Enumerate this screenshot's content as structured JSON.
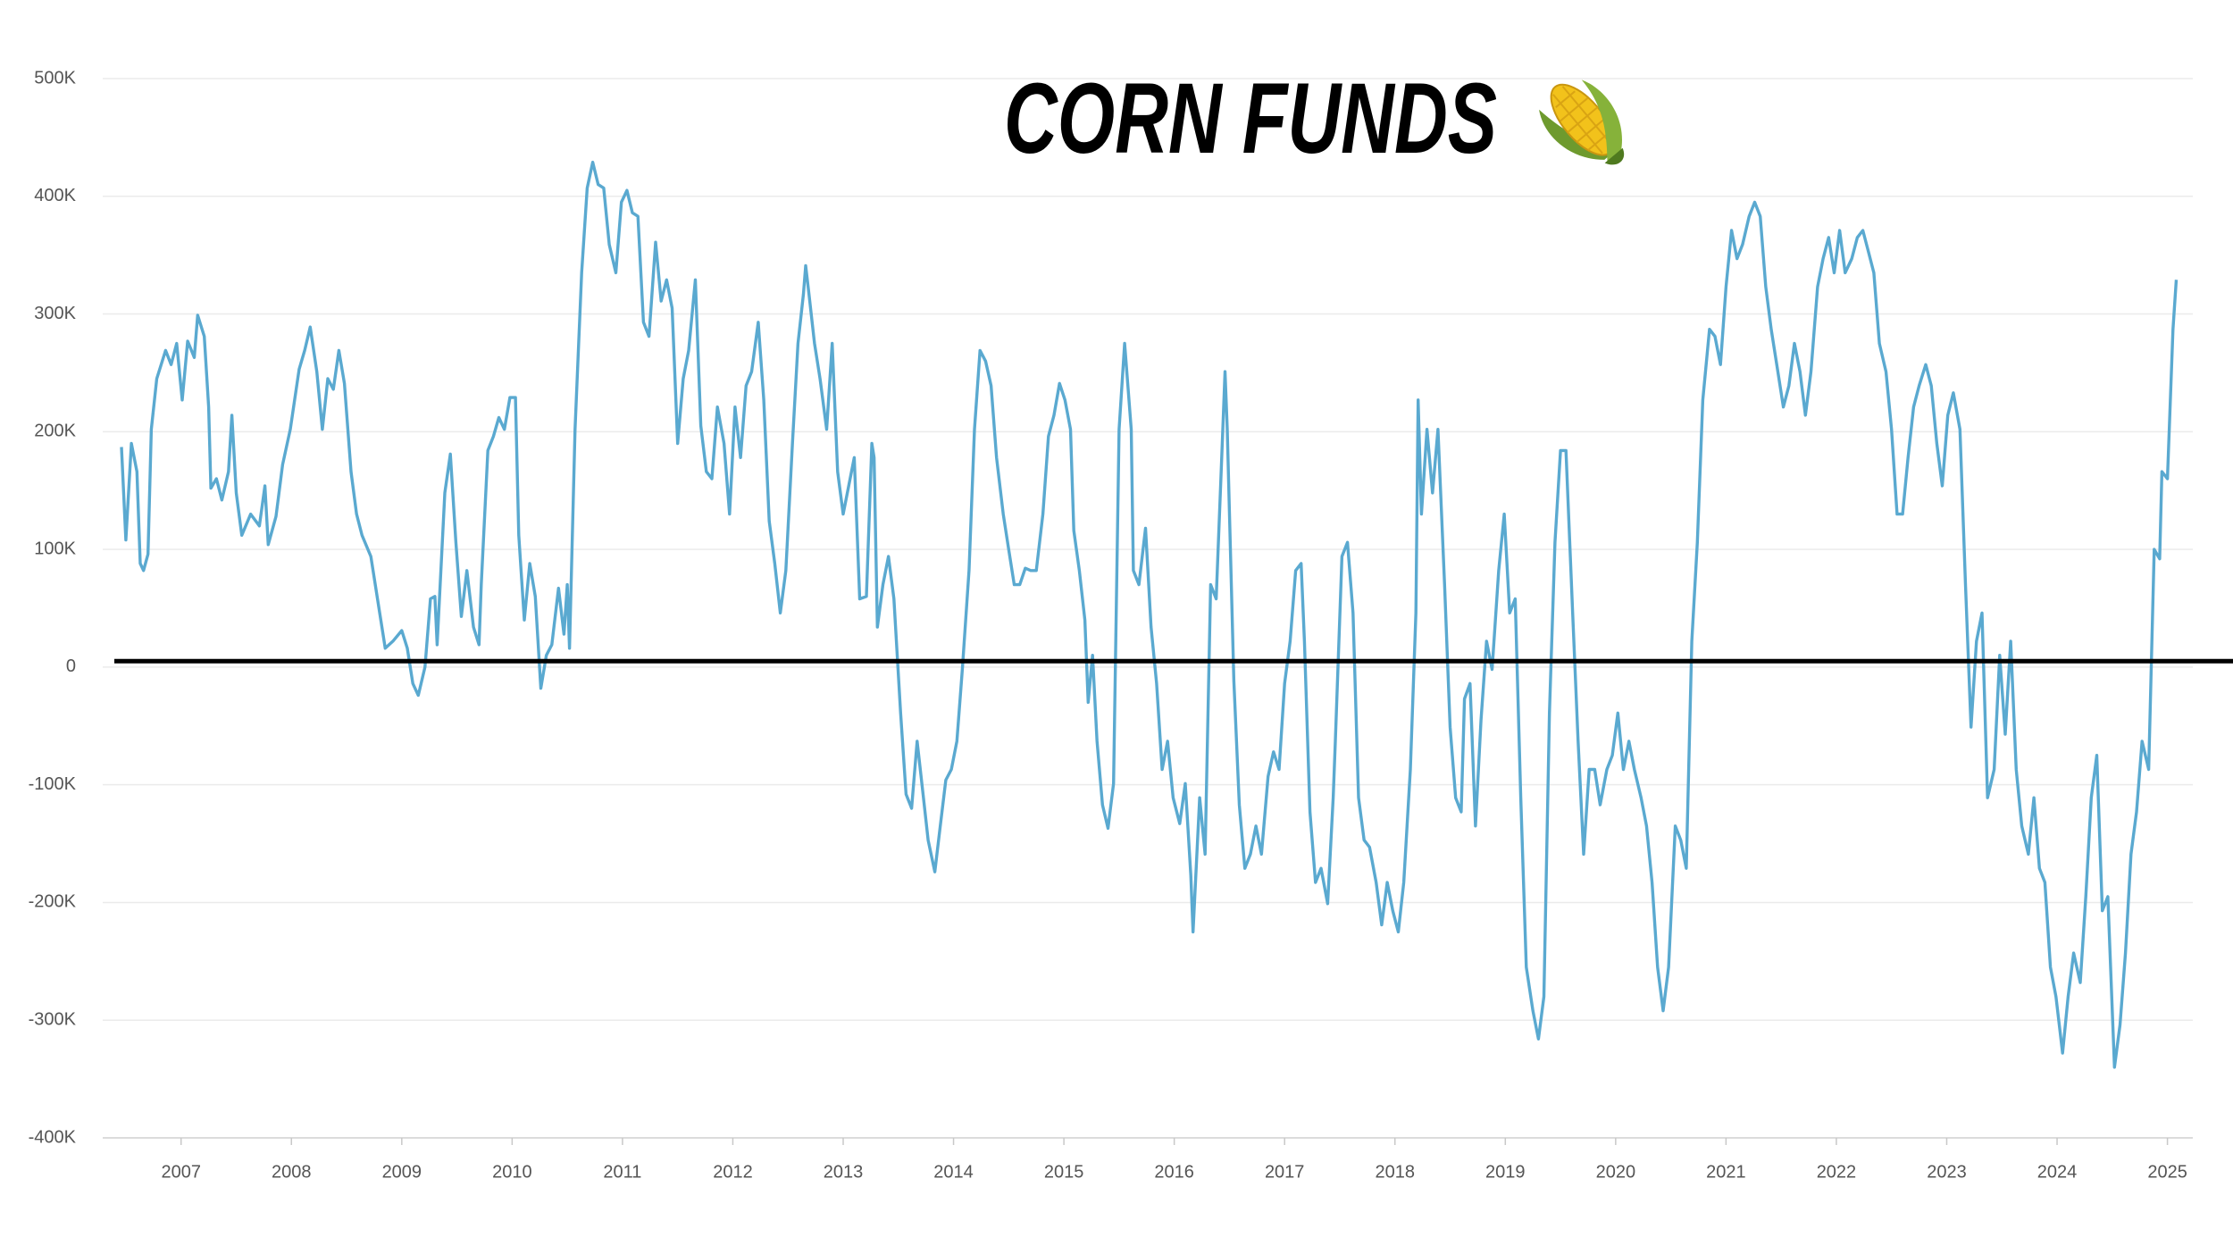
{
  "chart_data": {
    "type": "line",
    "title": "CORN FUNDS",
    "color": "#5aa9d0",
    "xlim": [
      2006.29,
      2025.23
    ],
    "xticks": [
      2007,
      2008,
      2009,
      2010,
      2011,
      2012,
      2013,
      2014,
      2015,
      2016,
      2017,
      2018,
      2019,
      2020,
      2021,
      2022,
      2023,
      2024,
      2025
    ],
    "ylim": [
      -400000,
      500000
    ],
    "yticks": [
      {
        "value": -400000,
        "label": "-400K"
      },
      {
        "value": -300000,
        "label": "-300K"
      },
      {
        "value": -200000,
        "label": "-200K"
      },
      {
        "value": -100000,
        "label": "-100K"
      },
      0,
      {
        "value": 100000,
        "label": "100K"
      },
      {
        "value": 200000,
        "label": "200K"
      },
      {
        "value": 300000,
        "label": "300K"
      },
      {
        "value": 400000,
        "label": "400K"
      },
      {
        "value": 500000,
        "label": "500K"
      }
    ],
    "grid": true,
    "reference_line": {
      "value": 5000,
      "color": "#000000"
    },
    "x": [
      2006.46,
      2006.5,
      2006.55,
      2006.6,
      2006.63,
      2006.66,
      2006.7,
      2006.73,
      2006.78,
      2006.86,
      2006.91,
      2006.96,
      2007.01,
      2007.06,
      2007.12,
      2007.15,
      2007.21,
      2007.25,
      2007.27,
      2007.32,
      2007.37,
      2007.43,
      2007.46,
      2007.5,
      2007.55,
      2007.63,
      2007.71,
      2007.76,
      2007.79,
      2007.86,
      2007.92,
      2007.99,
      2008.07,
      2008.12,
      2008.17,
      2008.23,
      2008.28,
      2008.33,
      2008.38,
      2008.43,
      2008.48,
      2008.54,
      2008.59,
      2008.64,
      2008.72,
      2008.8,
      2008.85,
      2008.92,
      2009.0,
      2009.05,
      2009.1,
      2009.15,
      2009.21,
      2009.26,
      2009.3,
      2009.32,
      2009.39,
      2009.44,
      2009.49,
      2009.54,
      2009.59,
      2009.65,
      2009.7,
      2009.72,
      2009.78,
      2009.83,
      2009.88,
      2009.93,
      2009.98,
      2010.03,
      2010.06,
      2010.11,
      2010.16,
      2010.21,
      2010.26,
      2010.31,
      2010.36,
      2010.42,
      2010.47,
      2010.5,
      2010.52,
      2010.57,
      2010.63,
      2010.68,
      2010.73,
      2010.78,
      2010.83,
      2010.88,
      2010.94,
      2010.99,
      2011.04,
      2011.09,
      2011.14,
      2011.19,
      2011.24,
      2011.3,
      2011.35,
      2011.4,
      2011.45,
      2011.5,
      2011.55,
      2011.6,
      2011.66,
      2011.71,
      2011.76,
      2011.81,
      2011.86,
      2011.92,
      2011.97,
      2012.02,
      2012.07,
      2012.12,
      2012.17,
      2012.23,
      2012.28,
      2012.33,
      2012.38,
      2012.43,
      2012.48,
      2012.54,
      2012.59,
      2012.64,
      2012.66,
      2012.69,
      2012.74,
      2012.79,
      2012.85,
      2012.9,
      2012.95,
      2013.0,
      2013.05,
      2013.1,
      2013.15,
      2013.21,
      2013.26,
      2013.28,
      2013.31,
      2013.36,
      2013.41,
      2013.46,
      2013.52,
      2013.57,
      2013.62,
      2013.67,
      2013.72,
      2013.77,
      2013.83,
      2013.88,
      2013.93,
      2013.98,
      2014.03,
      2014.08,
      2014.14,
      2014.19,
      2014.24,
      2014.29,
      2014.34,
      2014.39,
      2014.45,
      2014.5,
      2014.55,
      2014.6,
      2014.65,
      2014.7,
      2014.75,
      2014.81,
      2014.86,
      2014.91,
      2014.96,
      2015.01,
      2015.06,
      2015.09,
      2015.14,
      2015.19,
      2015.22,
      2015.26,
      2015.3,
      2015.35,
      2015.4,
      2015.45,
      2015.5,
      2015.55,
      2015.61,
      2015.63,
      2015.68,
      2015.74,
      2015.79,
      2015.84,
      2015.89,
      2015.94,
      2015.99,
      2016.05,
      2016.1,
      2016.15,
      2016.17,
      2016.23,
      2016.28,
      2016.33,
      2016.38,
      2016.43,
      2016.46,
      2016.48,
      2016.54,
      2016.59,
      2016.64,
      2016.69,
      2016.74,
      2016.79,
      2016.85,
      2016.9,
      2016.95,
      2017.0,
      2017.05,
      2017.1,
      2017.15,
      2017.18,
      2017.23,
      2017.28,
      2017.33,
      2017.39,
      2017.44,
      2017.46,
      2017.52,
      2017.57,
      2017.62,
      2017.67,
      2017.72,
      2017.77,
      2017.83,
      2017.88,
      2017.93,
      2017.98,
      2018.03,
      2018.08,
      2018.14,
      2018.19,
      2018.21,
      2018.24,
      2018.29,
      2018.34,
      2018.39,
      2018.45,
      2018.5,
      2018.55,
      2018.6,
      2018.63,
      2018.68,
      2018.73,
      2018.78,
      2018.83,
      2018.88,
      2018.94,
      2018.99,
      2019.04,
      2019.09,
      2019.14,
      2019.19,
      2019.25,
      2019.3,
      2019.35,
      2019.4,
      2019.45,
      2019.5,
      2019.55,
      2019.61,
      2019.66,
      2019.71,
      2019.76,
      2019.81,
      2019.86,
      2019.92,
      2019.97,
      2020.02,
      2020.07,
      2020.12,
      2020.17,
      2020.23,
      2020.28,
      2020.33,
      2020.38,
      2020.43,
      2020.48,
      2020.54,
      2020.59,
      2020.64,
      2020.69,
      2020.74,
      2020.79,
      2020.85,
      2020.9,
      2020.95,
      2021.0,
      2021.05,
      2021.1,
      2021.15,
      2021.21,
      2021.26,
      2021.31,
      2021.36,
      2021.41,
      2021.46,
      2021.52,
      2021.57,
      2021.62,
      2021.67,
      2021.72,
      2021.77,
      2021.83,
      2021.88,
      2021.93,
      2021.98,
      2022.03,
      2022.08,
      2022.14,
      2022.19,
      2022.24,
      2022.29,
      2022.34,
      2022.39,
      2022.45,
      2022.5,
      2022.55,
      2022.6,
      2022.65,
      2022.7,
      2022.75,
      2022.81,
      2022.86,
      2022.91,
      2022.96,
      2023.01,
      2023.06,
      2023.12,
      2023.17,
      2023.22,
      2023.27,
      2023.32,
      2023.37,
      2023.43,
      2023.48,
      2023.53,
      2023.58,
      2023.63,
      2023.68,
      2023.74,
      2023.79,
      2023.84,
      2023.89,
      2023.94,
      2023.99,
      2024.05,
      2024.1,
      2024.15,
      2024.21,
      2024.26,
      2024.31,
      2024.36,
      2024.41,
      2024.46,
      2024.52,
      2024.57,
      2024.62,
      2024.67,
      2024.72,
      2024.77,
      2024.83,
      2024.88,
      2024.93,
      2024.95,
      2025.0,
      2025.05,
      2025.08
    ],
    "values": [
      187000,
      108000,
      190000,
      166000,
      88000,
      82000,
      96000,
      202000,
      245000,
      269000,
      257000,
      275000,
      227000,
      277000,
      263000,
      299000,
      281000,
      221000,
      152000,
      160000,
      142000,
      166000,
      214000,
      148000,
      112000,
      130000,
      120000,
      154000,
      104000,
      128000,
      172000,
      202000,
      253000,
      269000,
      289000,
      251000,
      202000,
      245000,
      236000,
      269000,
      241000,
      166000,
      130000,
      112000,
      94000,
      46000,
      16000,
      22000,
      31000,
      16000,
      -14000,
      -24000,
      0,
      58000,
      60000,
      19000,
      148000,
      181000,
      106000,
      43000,
      82000,
      34000,
      19000,
      70000,
      184000,
      196000,
      212000,
      202000,
      229000,
      229000,
      112000,
      40000,
      88000,
      60000,
      -18000,
      10000,
      19000,
      67000,
      28000,
      70000,
      16000,
      202000,
      335000,
      407000,
      429000,
      410000,
      407000,
      359000,
      335000,
      395000,
      405000,
      386000,
      383000,
      293000,
      281000,
      361000,
      311000,
      329000,
      305000,
      190000,
      245000,
      269000,
      329000,
      205000,
      166000,
      160000,
      221000,
      190000,
      130000,
      221000,
      178000,
      239000,
      251000,
      293000,
      227000,
      124000,
      88000,
      46000,
      82000,
      190000,
      275000,
      317000,
      341000,
      317000,
      275000,
      245000,
      202000,
      275000,
      166000,
      130000,
      154000,
      178000,
      58000,
      60000,
      190000,
      178000,
      34000,
      70000,
      94000,
      58000,
      -39000,
      -108000,
      -120000,
      -63000,
      -105000,
      -147000,
      -174000,
      -135000,
      -96000,
      -87000,
      -63000,
      -2000,
      82000,
      202000,
      269000,
      260000,
      239000,
      178000,
      130000,
      100000,
      70000,
      70000,
      84000,
      82000,
      82000,
      130000,
      196000,
      214000,
      241000,
      227000,
      202000,
      116000,
      82000,
      40000,
      -30000,
      10000,
      -63000,
      -117000,
      -137000,
      -99000,
      202000,
      275000,
      202000,
      82000,
      70000,
      118000,
      34000,
      -14000,
      -87000,
      -63000,
      -111000,
      -133000,
      -99000,
      -177000,
      -225000,
      -111000,
      -159000,
      70000,
      58000,
      178000,
      251000,
      202000,
      -12000,
      -117000,
      -171000,
      -159000,
      -135000,
      -159000,
      -93000,
      -72000,
      -87000,
      -14000,
      22000,
      82000,
      88000,
      22000,
      -123000,
      -183000,
      -171000,
      -201000,
      -111000,
      -63000,
      94000,
      106000,
      46000,
      -111000,
      -147000,
      -153000,
      -183000,
      -219000,
      -183000,
      -207000,
      -225000,
      -183000,
      -87000,
      46000,
      227000,
      130000,
      202000,
      148000,
      202000,
      70000,
      -51000,
      -111000,
      -123000,
      -27000,
      -14000,
      -135000,
      -45000,
      22000,
      -2000,
      82000,
      130000,
      46000,
      58000,
      -111000,
      -255000,
      -292000,
      -316000,
      -280000,
      -39000,
      106000,
      184000,
      184000,
      46000,
      -63000,
      -159000,
      -87000,
      -87000,
      -117000,
      -87000,
      -75000,
      -39000,
      -87000,
      -63000,
      -87000,
      -111000,
      -135000,
      -183000,
      -255000,
      -292000,
      -255000,
      -135000,
      -147000,
      -171000,
      22000,
      106000,
      227000,
      287000,
      281000,
      257000,
      323000,
      371000,
      347000,
      359000,
      383000,
      395000,
      383000,
      323000,
      287000,
      257000,
      221000,
      239000,
      275000,
      251000,
      214000,
      251000,
      323000,
      347000,
      365000,
      335000,
      371000,
      335000,
      347000,
      365000,
      371000,
      353000,
      335000,
      275000,
      251000,
      202000,
      130000,
      130000,
      178000,
      221000,
      239000,
      257000,
      239000,
      190000,
      154000,
      214000,
      233000,
      202000,
      70000,
      -51000,
      22000,
      46000,
      -111000,
      -87000,
      10000,
      -57000,
      22000,
      -87000,
      -135000,
      -159000,
      -111000,
      -171000,
      -183000,
      -255000,
      -280000,
      -328000,
      -280000,
      -243000,
      -268000,
      -195000,
      -111000,
      -75000,
      -207000,
      -195000,
      -340000,
      -304000,
      -243000,
      -159000,
      -123000,
      -63000,
      -87000,
      100000,
      92000,
      166000,
      160000,
      287000,
      329000
    ]
  }
}
